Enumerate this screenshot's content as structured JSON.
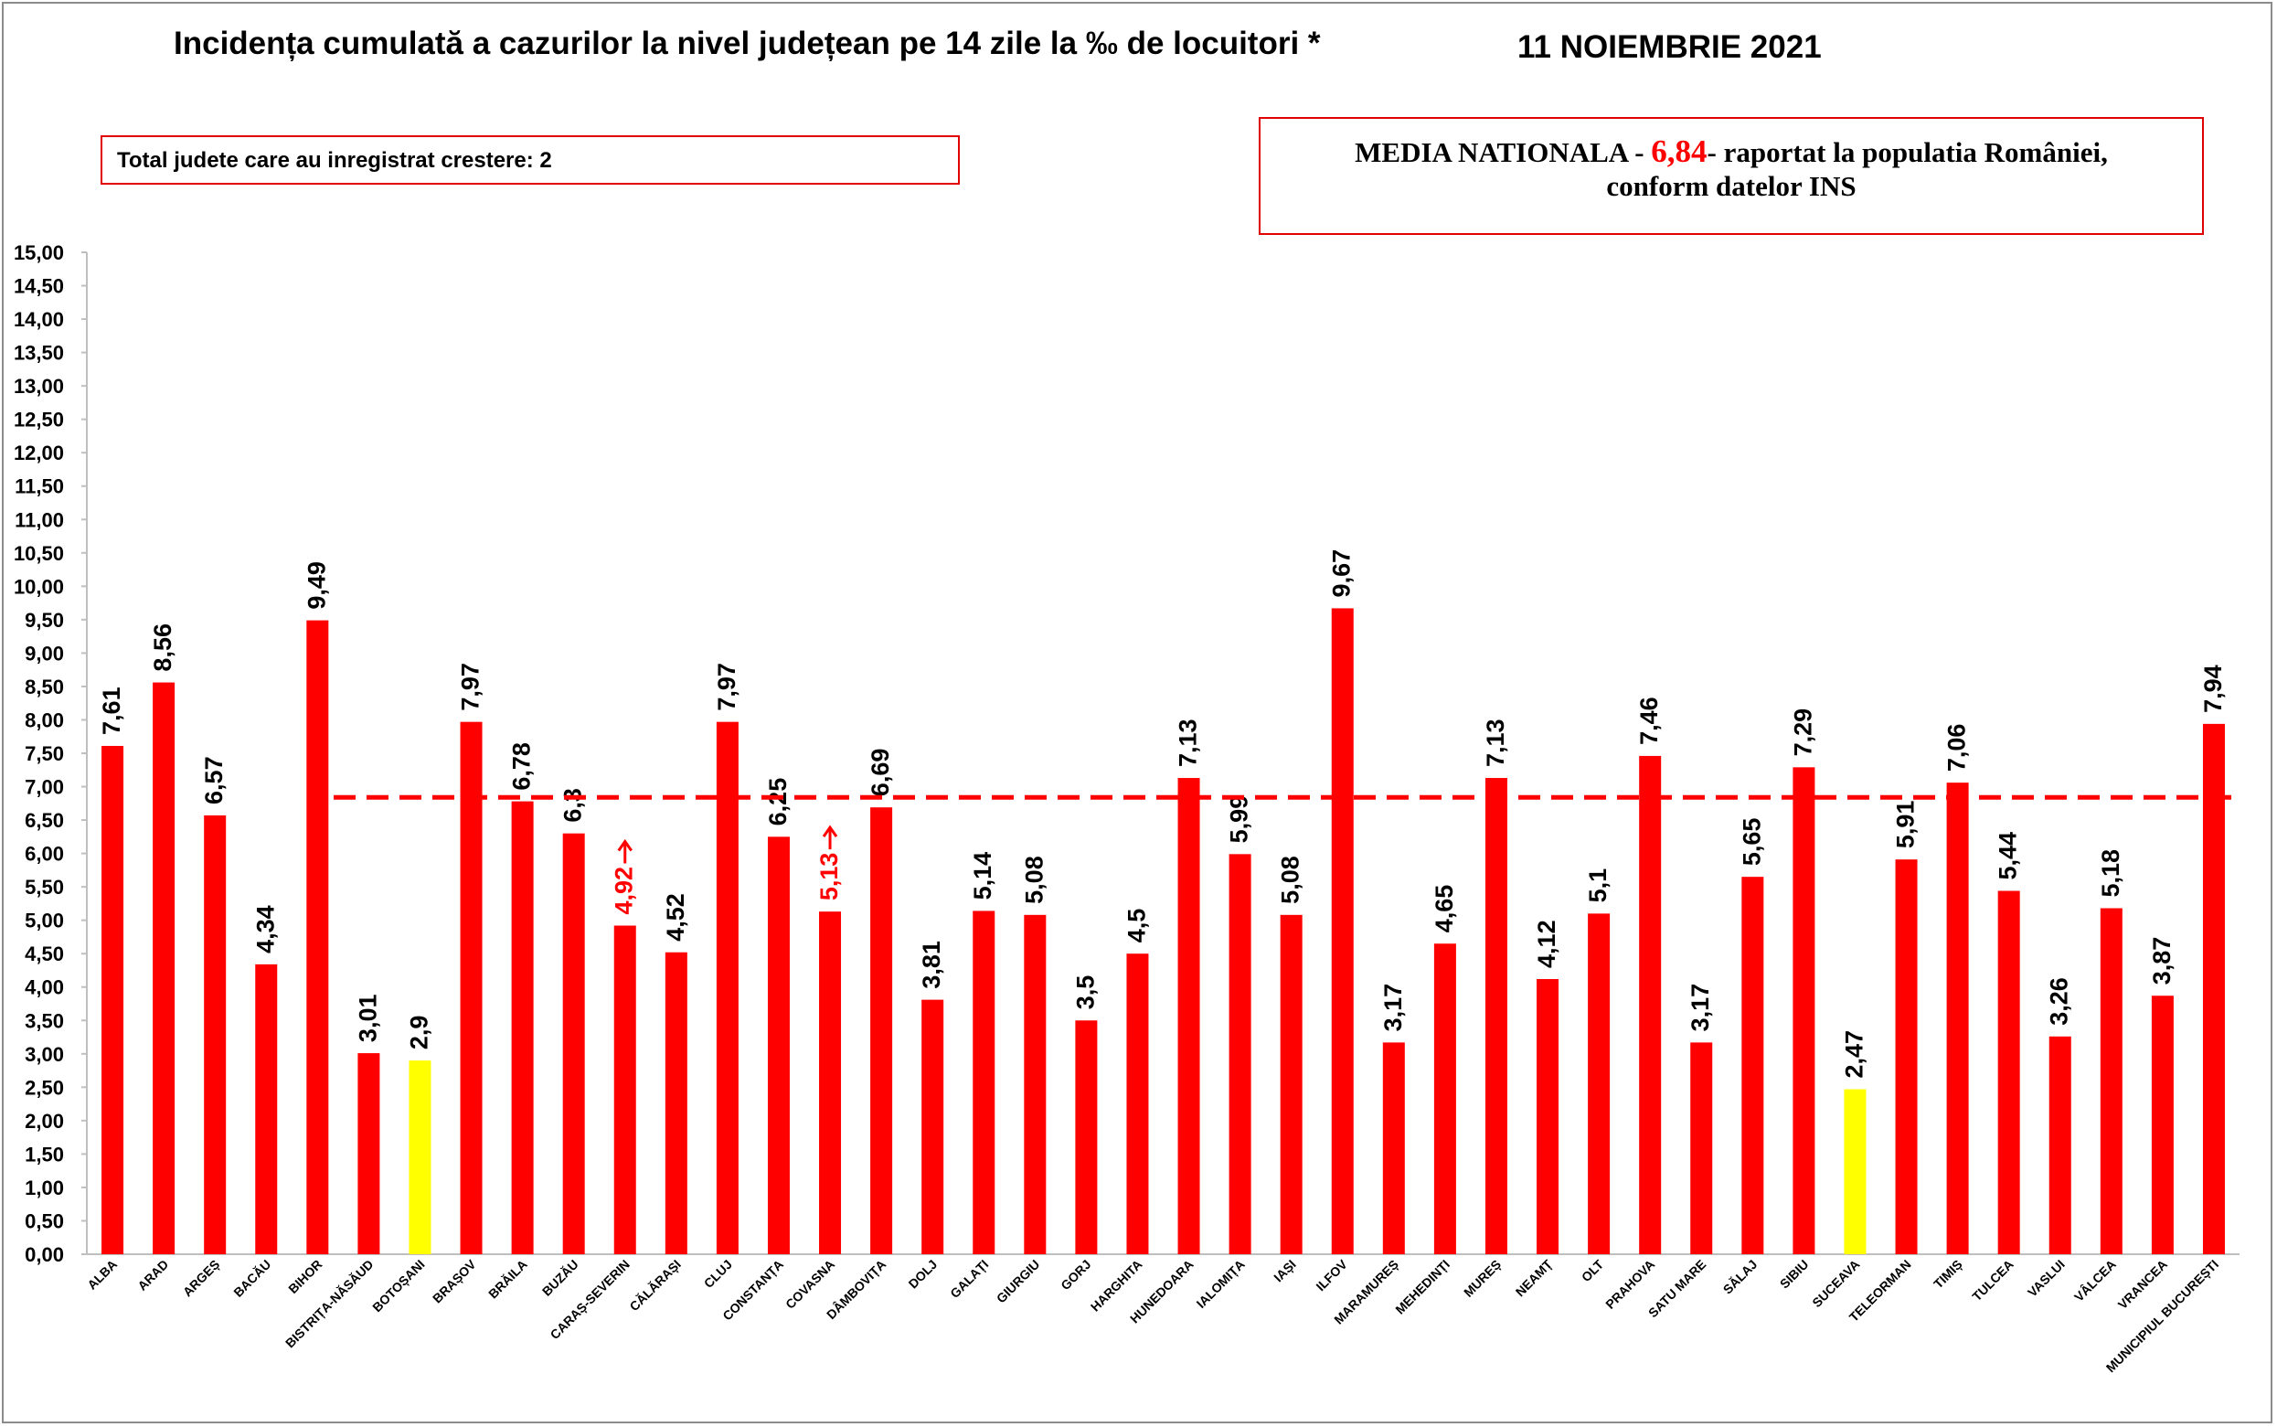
{
  "header": {
    "title": "Incidența cumulată a cazurilor la nivel județean pe 14 zile la ‰ de locuitori *",
    "date": "11 NOIEMBRIE 2021"
  },
  "info_box": {
    "text": "Total judete care au inregistrat crestere: 2"
  },
  "national_box": {
    "prefix": "MEDIA NATIONALA - ",
    "value": "6,84",
    "suffix": "-  raportat la populatia României,",
    "line2": "conform datelor INS"
  },
  "colors": {
    "bar": "#ff0000",
    "highlight": "#ffff00",
    "reference_line": "#ff0000",
    "increase_label": "#ff0000"
  },
  "chart_data": {
    "type": "bar",
    "title": "Incidența cumulată a cazurilor la nivel județean pe 14 zile la ‰ de locuitori *",
    "xlabel": "",
    "ylabel": "",
    "ylim": [
      0,
      15
    ],
    "ytick_step": 0.5,
    "yticks": [
      "0,00",
      "0,50",
      "1,00",
      "1,50",
      "2,00",
      "2,50",
      "3,00",
      "3,50",
      "4,00",
      "4,50",
      "5,00",
      "5,50",
      "6,00",
      "6,50",
      "7,00",
      "7,50",
      "8,00",
      "8,50",
      "9,00",
      "9,50",
      "10,00",
      "10,50",
      "11,00",
      "11,50",
      "12,00",
      "12,50",
      "13,00",
      "13,50",
      "14,00",
      "14,50",
      "15,00"
    ],
    "grid": false,
    "reference_line": {
      "value": 6.84,
      "style": "dashed"
    },
    "categories": [
      "ALBA",
      "ARAD",
      "ARGEȘ",
      "BACĂU",
      "BIHOR",
      "BISTRIȚA-NĂSĂUD",
      "BOTOȘANI",
      "BRAȘOV",
      "BRĂILA",
      "BUZĂU",
      "CARAȘ-SEVERIN",
      "CĂLĂRAȘI",
      "CLUJ",
      "CONSTANȚA",
      "COVASNA",
      "DÂMBOVIȚA",
      "DOLJ",
      "GALAȚI",
      "GIURGIU",
      "GORJ",
      "HARGHITA",
      "HUNEDOARA",
      "IALOMIȚA",
      "IAȘI",
      "ILFOV",
      "MARAMUREȘ",
      "MEHEDINȚI",
      "MUREȘ",
      "NEAMȚ",
      "OLT",
      "PRAHOVA",
      "SATU MARE",
      "SĂLAJ",
      "SIBIU",
      "SUCEAVA",
      "TELEORMAN",
      "TIMIȘ",
      "TULCEA",
      "VASLUI",
      "VÂLCEA",
      "VRANCEA",
      "MUNICIPIUL BUCUREȘTI"
    ],
    "values": [
      7.61,
      8.56,
      6.57,
      4.34,
      9.49,
      3.01,
      2.9,
      7.97,
      6.78,
      6.3,
      4.92,
      4.52,
      7.97,
      6.25,
      5.13,
      6.69,
      3.81,
      5.14,
      5.08,
      3.5,
      4.5,
      7.13,
      5.99,
      5.08,
      9.67,
      3.17,
      4.65,
      7.13,
      4.12,
      5.1,
      7.46,
      3.17,
      5.65,
      7.29,
      2.47,
      5.91,
      7.06,
      5.44,
      3.26,
      5.18,
      3.87,
      7.94
    ],
    "value_labels": [
      "7,61",
      "8,56",
      "6,57",
      "4,34",
      "9,49",
      "3,01",
      "2,9",
      "7,97",
      "6,78",
      "6,3",
      "4,92",
      "4,52",
      "7,97",
      "6,25",
      "5,13",
      "6,69",
      "3,81",
      "5,14",
      "5,08",
      "3,5",
      "4,5",
      "7,13",
      "5,99",
      "5,08",
      "9,67",
      "3,17",
      "4,65",
      "7,13",
      "4,12",
      "5,1",
      "7,46",
      "3,17",
      "5,65",
      "7,29",
      "2,47",
      "5,91",
      "7,06",
      "5,44",
      "3,26",
      "5,18",
      "3,87",
      "7,94"
    ],
    "highlighted": [
      "BOTOȘANI",
      "SUCEAVA"
    ],
    "increased": [
      "CARAȘ-SEVERIN",
      "COVASNA"
    ]
  }
}
